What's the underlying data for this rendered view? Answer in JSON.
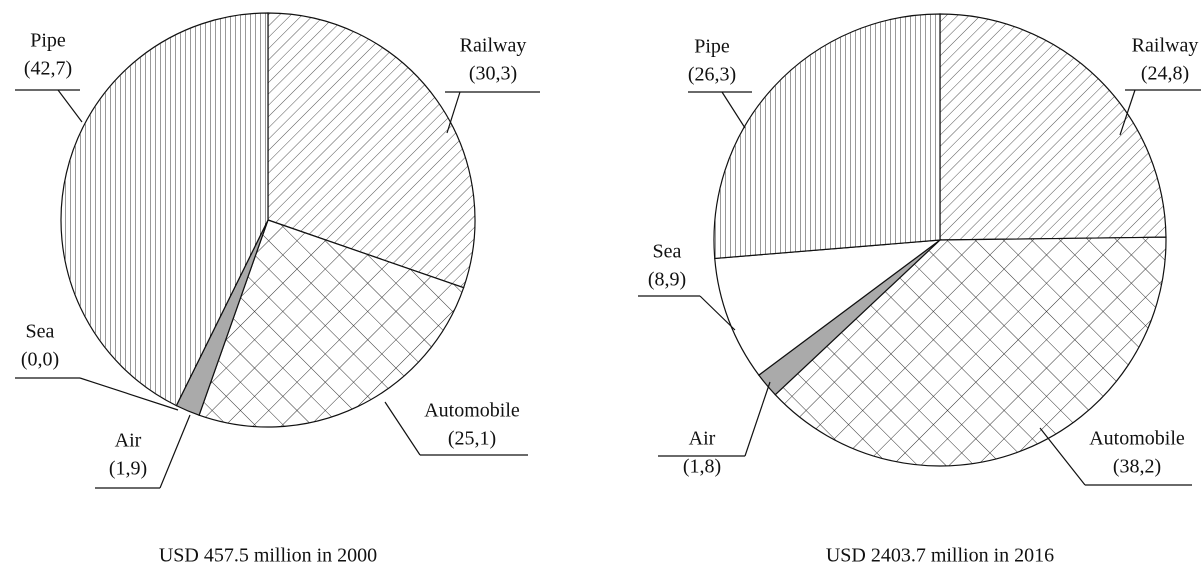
{
  "chart_data": [
    {
      "type": "pie",
      "title": "USD 457.5 million in 2000",
      "categories": [
        "Railway",
        "Automobile",
        "Air",
        "Sea",
        "Pipe"
      ],
      "values": [
        30.3,
        25.1,
        1.9,
        0.0,
        42.7
      ],
      "value_labels": [
        "(30,3)",
        "(25,1)",
        "(1,9)",
        "(0,0)",
        "(42,7)"
      ],
      "patterns": [
        "diagonal",
        "crosshatch",
        "gray",
        "white",
        "vertical"
      ]
    },
    {
      "type": "pie",
      "title": "USD 2403.7 million in 2016",
      "categories": [
        "Railway",
        "Automobile",
        "Air",
        "Sea",
        "Pipe"
      ],
      "values": [
        24.8,
        38.2,
        1.8,
        8.9,
        26.3
      ],
      "value_labels": [
        "(24,8)",
        "(38,2)",
        "(1,8)",
        "(8,9)",
        "(26,3)"
      ],
      "patterns": [
        "diagonal",
        "crosshatch",
        "gray",
        "white",
        "vertical"
      ]
    }
  ]
}
